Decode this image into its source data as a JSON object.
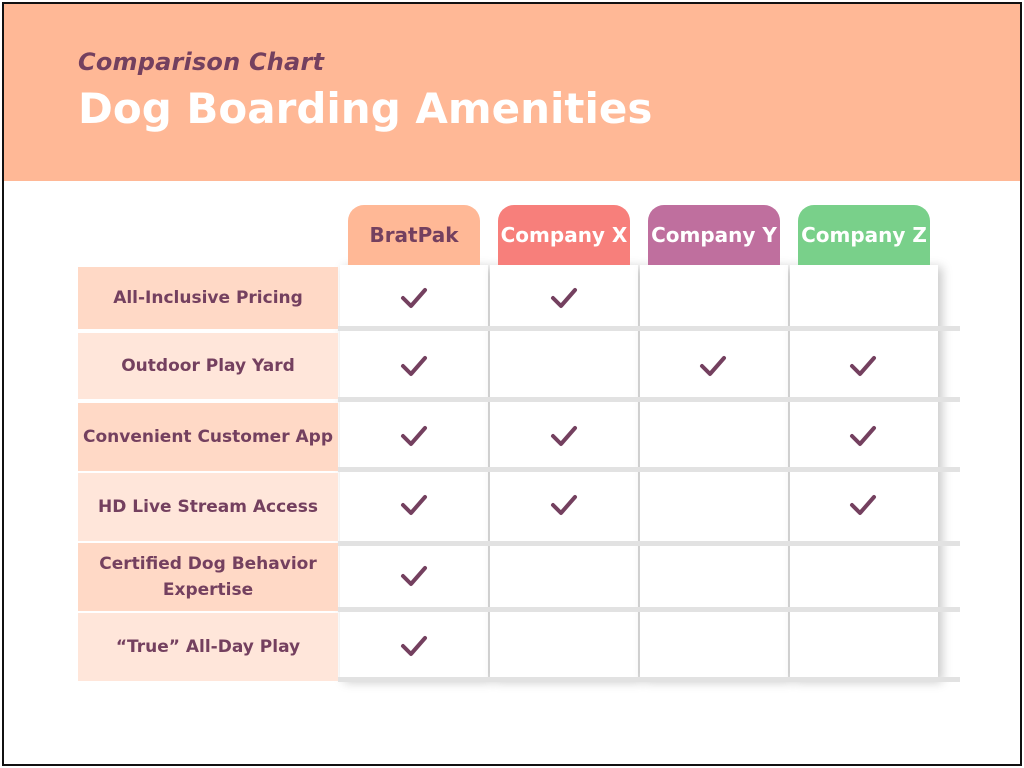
{
  "header": {
    "subtitle": "Comparison Chart",
    "title": "Dog Boarding Amenities"
  },
  "colors": {
    "banner": "#ffb896",
    "text_accent": "#74405f",
    "bratpak": "#ffb896",
    "company_x": "#f77f7b",
    "company_y": "#bf6f9e",
    "company_z": "#79d08a",
    "check": "#74405f"
  },
  "columns": [
    {
      "label": "BratPak"
    },
    {
      "label": "Company X"
    },
    {
      "label": "Company Y"
    },
    {
      "label": "Company Z"
    }
  ],
  "rows": [
    {
      "label": "All-Inclusive Pricing",
      "checks": [
        true,
        true,
        false,
        false
      ]
    },
    {
      "label": "Outdoor Play Yard",
      "checks": [
        true,
        false,
        true,
        true
      ]
    },
    {
      "label": "Convenient Customer App",
      "checks": [
        true,
        true,
        false,
        true
      ]
    },
    {
      "label": "HD Live Stream Access",
      "checks": [
        true,
        true,
        false,
        true
      ]
    },
    {
      "label": "Certified Dog Behavior Expertise",
      "checks": [
        true,
        false,
        false,
        false
      ]
    },
    {
      "label": "“True” All-Day Play",
      "checks": [
        true,
        false,
        false,
        false
      ]
    }
  ],
  "icons": {
    "check": "check-icon"
  }
}
